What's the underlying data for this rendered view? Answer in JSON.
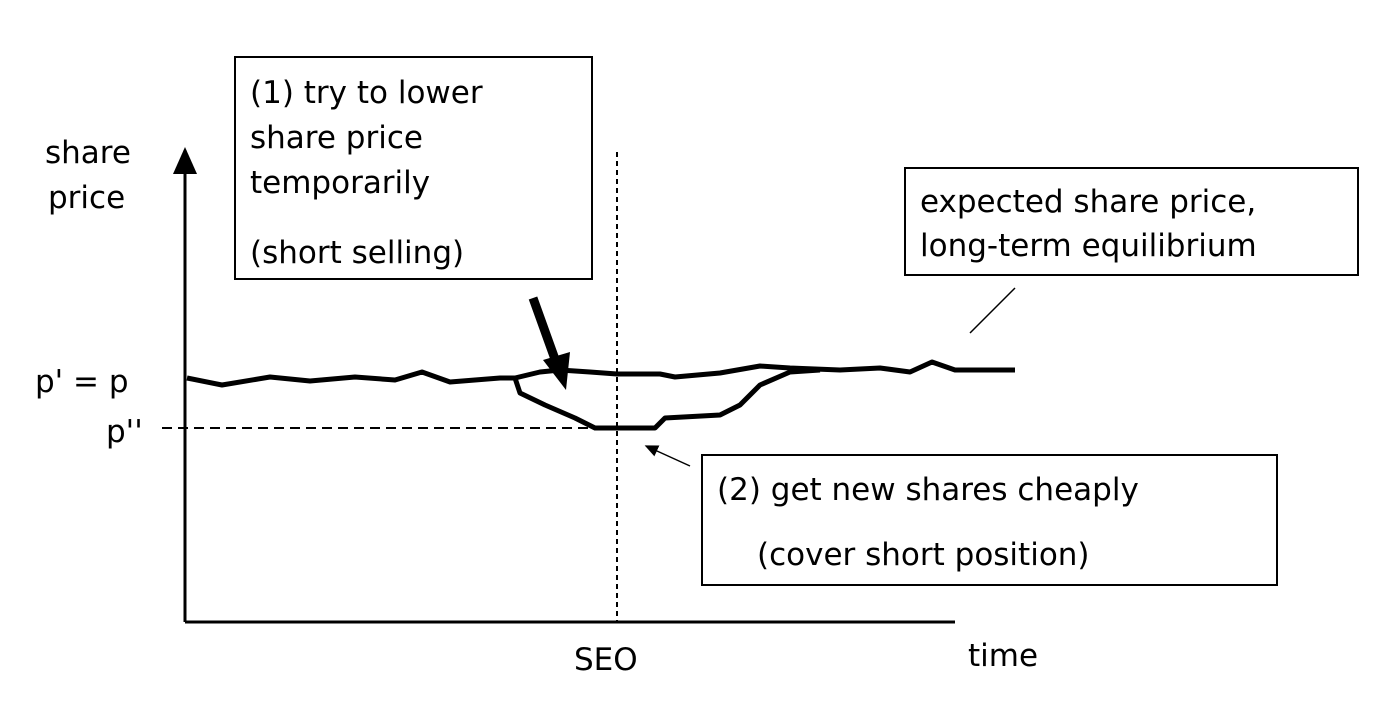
{
  "axes": {
    "y_label_line1": "share",
    "y_label_line2": "price",
    "x_label": "time",
    "seo_label": "SEO",
    "p_equal_label": "p' = p",
    "p_double_label": "p''"
  },
  "box1": {
    "line1": "(1) try to lower",
    "line2": "share price",
    "line3": "temporarily",
    "line4": "(short selling)"
  },
  "box2": {
    "line1": "expected share price,",
    "line2": "long-term equilibrium"
  },
  "box3": {
    "line1": "(2) get new shares cheaply",
    "line2": "(cover short position)"
  }
}
